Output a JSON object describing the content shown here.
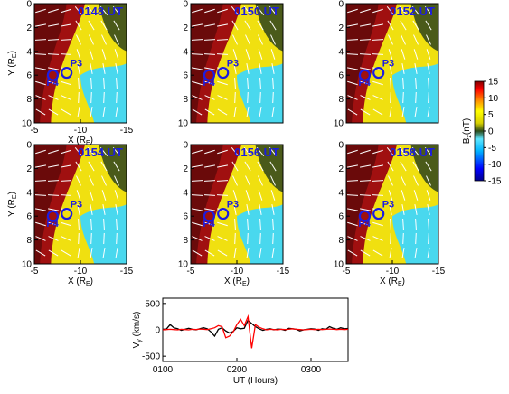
{
  "chart_data": [
    {
      "type": "heatmap",
      "title": "0148 UT",
      "xlabel": "X (R",
      "xlabel_sub": "E",
      "xlabel_end": ")",
      "ylabel": "Y (R",
      "ylabel_sub": "E",
      "ylabel_end": ")",
      "xlim": [
        -5,
        -15
      ],
      "ylim": [
        10,
        0
      ],
      "xticks": [
        "-5",
        "-10",
        "-15"
      ],
      "yticks": [
        "0",
        "2",
        "4",
        "6",
        "8",
        "10"
      ],
      "markers": [
        {
          "label": "P4",
          "x": -7.0,
          "y": 6.0
        },
        {
          "label": "P3",
          "x": -8.5,
          "y": 5.8
        }
      ]
    },
    {
      "type": "heatmap",
      "title": "0150 UT",
      "xlabel": "",
      "ylabel": "",
      "xlim": [
        -5,
        -15
      ],
      "ylim": [
        10,
        0
      ],
      "xticks": [],
      "yticks": [
        "0",
        "2",
        "4",
        "6",
        "8",
        "10"
      ],
      "markers": [
        {
          "label": "P4",
          "x": -7.0,
          "y": 6.0
        },
        {
          "label": "P3",
          "x": -8.5,
          "y": 5.8
        }
      ]
    },
    {
      "type": "heatmap",
      "title": "0152 UT",
      "xlabel": "",
      "ylabel": "",
      "xlim": [
        -5,
        -15
      ],
      "ylim": [
        10,
        0
      ],
      "xticks": [],
      "yticks": [
        "0",
        "2",
        "4",
        "6",
        "8",
        "10"
      ],
      "markers": [
        {
          "label": "P4",
          "x": -7.0,
          "y": 6.0
        },
        {
          "label": "P3",
          "x": -8.5,
          "y": 5.8
        }
      ]
    },
    {
      "type": "heatmap",
      "title": "0154 UT",
      "xlabel": "X (R",
      "xlabel_sub": "E",
      "xlabel_end": ")",
      "ylabel": "Y (R",
      "ylabel_sub": "E",
      "ylabel_end": ")",
      "xlim": [
        -5,
        -15
      ],
      "ylim": [
        10,
        0
      ],
      "xticks": [
        "-5",
        "-10",
        "-15"
      ],
      "yticks": [
        "0",
        "2",
        "4",
        "6",
        "8",
        "10"
      ],
      "markers": [
        {
          "label": "P4",
          "x": -7.0,
          "y": 6.0
        },
        {
          "label": "P3",
          "x": -8.5,
          "y": 5.8
        }
      ]
    },
    {
      "type": "heatmap",
      "title": "0156 UT",
      "xlabel": "X (R",
      "xlabel_sub": "E",
      "xlabel_end": ")",
      "ylabel": "",
      "xlim": [
        -5,
        -15
      ],
      "ylim": [
        10,
        0
      ],
      "xticks": [
        "-5",
        "-10",
        "-15"
      ],
      "yticks": [
        "0",
        "2",
        "4",
        "6",
        "8",
        "10"
      ],
      "markers": [
        {
          "label": "P4",
          "x": -7.0,
          "y": 6.0
        },
        {
          "label": "P3",
          "x": -8.5,
          "y": 5.8
        }
      ]
    },
    {
      "type": "heatmap",
      "title": "0158 UT",
      "xlabel": "X (R",
      "xlabel_sub": "E",
      "xlabel_end": ")",
      "ylabel": "",
      "xlim": [
        -5,
        -15
      ],
      "ylim": [
        10,
        0
      ],
      "xticks": [
        "-5",
        "-10",
        "-15"
      ],
      "yticks": [
        "0",
        "2",
        "4",
        "6",
        "8",
        "10"
      ],
      "markers": [
        {
          "label": "P4",
          "x": -7.0,
          "y": 6.0
        },
        {
          "label": "P3",
          "x": -8.5,
          "y": 5.8
        }
      ]
    },
    {
      "type": "line",
      "xlabel": "UT (Hours)",
      "ylabel": "V",
      "ylabel_sub": "y",
      "ylabel_end": " (km/s)",
      "xlim": [
        1.0,
        3.5
      ],
      "ylim": [
        -600,
        600
      ],
      "xticks": [
        {
          "value": 1.0,
          "label": "0100"
        },
        {
          "value": 2.0,
          "label": "0200"
        },
        {
          "value": 3.0,
          "label": "0300"
        }
      ],
      "yticks": [
        {
          "value": 500,
          "label": "500"
        },
        {
          "value": 0,
          "label": "0"
        },
        {
          "value": -500,
          "label": "-500"
        }
      ],
      "series": [
        {
          "color": "#000000",
          "x": [
            1.0,
            1.05,
            1.1,
            1.15,
            1.2,
            1.25,
            1.3,
            1.35,
            1.4,
            1.45,
            1.5,
            1.55,
            1.6,
            1.65,
            1.7,
            1.75,
            1.8,
            1.85,
            1.9,
            1.95,
            2.0,
            2.05,
            2.1,
            2.15,
            2.2,
            2.25,
            2.3,
            2.35,
            2.4,
            2.45,
            2.5,
            2.55,
            2.6,
            2.65,
            2.7,
            2.75,
            2.8,
            2.85,
            2.9,
            2.95,
            3.0,
            3.05,
            3.1,
            3.15,
            3.2,
            3.25,
            3.3,
            3.35,
            3.4,
            3.45,
            3.5
          ],
          "y": [
            10,
            15,
            100,
            40,
            20,
            -10,
            10,
            30,
            10,
            0,
            20,
            40,
            20,
            -40,
            -120,
            10,
            40,
            -20,
            -60,
            -30,
            40,
            20,
            30,
            180,
            120,
            60,
            20,
            -10,
            10,
            20,
            0,
            15,
            10,
            -10,
            30,
            20,
            10,
            -20,
            0,
            10,
            20,
            15,
            -10,
            20,
            10,
            60,
            30,
            10,
            40,
            20,
            25
          ]
        },
        {
          "color": "#ff0000",
          "x": [
            1.0,
            1.05,
            1.1,
            1.15,
            1.2,
            1.25,
            1.3,
            1.35,
            1.4,
            1.45,
            1.5,
            1.55,
            1.6,
            1.65,
            1.7,
            1.75,
            1.8,
            1.85,
            1.9,
            1.95,
            2.0,
            2.05,
            2.1,
            2.15,
            2.2,
            2.25,
            2.3,
            2.35,
            2.4,
            2.45,
            2.5,
            2.55,
            2.6,
            2.65,
            2.7,
            2.75,
            2.8,
            2.85,
            2.9,
            2.95,
            3.0,
            3.05,
            3.1,
            3.15,
            3.2,
            3.25,
            3.3,
            3.35,
            3.4,
            3.45,
            3.5
          ],
          "y": [
            0,
            5,
            10,
            5,
            0,
            10,
            5,
            0,
            10,
            5,
            15,
            10,
            5,
            20,
            40,
            80,
            60,
            -150,
            -120,
            -40,
            100,
            200,
            80,
            250,
            -350,
            100,
            50,
            20,
            0,
            10,
            5,
            0,
            10,
            5,
            10,
            20,
            10,
            5,
            0,
            5,
            10,
            5,
            10,
            5,
            10,
            15,
            10,
            5,
            10,
            5,
            10
          ]
        }
      ]
    },
    {
      "type": "heatmap",
      "role": "colorbar",
      "label": "B",
      "label_sub": "z",
      "label_end": "(nT)",
      "range": [
        -15,
        15
      ],
      "ticks": [
        "15",
        "10",
        "5",
        "0",
        "-5",
        "-10",
        "-15"
      ]
    }
  ]
}
